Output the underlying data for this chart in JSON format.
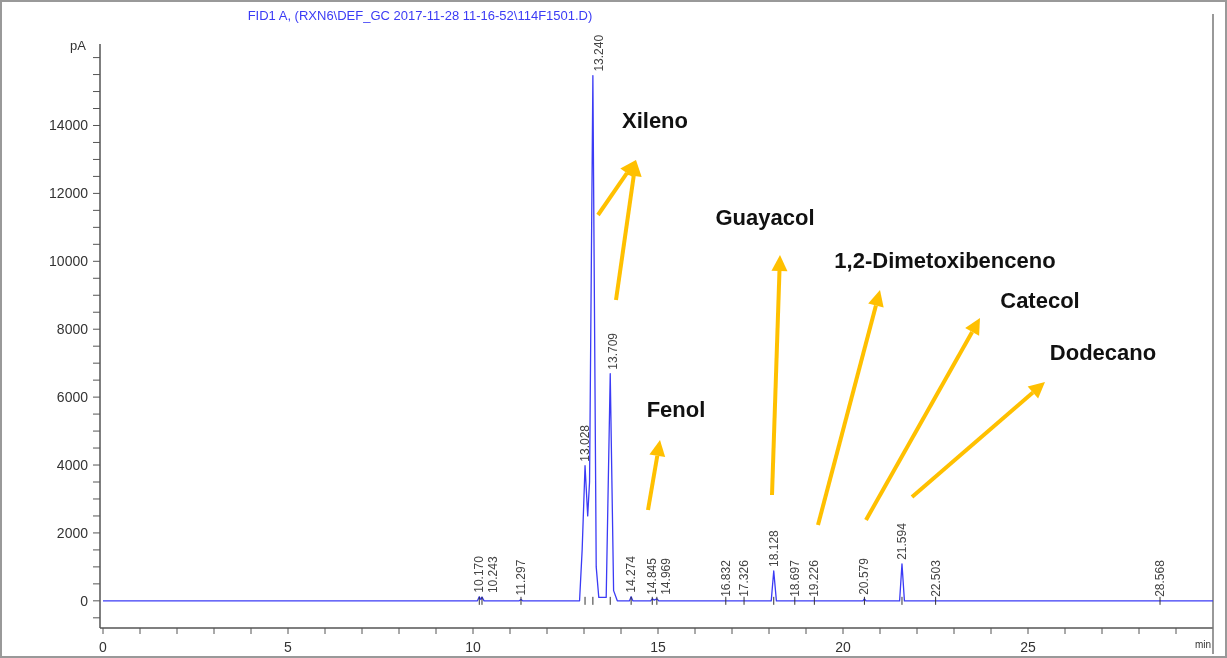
{
  "chart_data": {
    "type": "line",
    "title": "FID1 A,  (RXN6\\DEF_GC 2017-11-28 11-16-52\\114F1501.D)",
    "xlabel": "min",
    "ylabel": "pA",
    "series": [
      {
        "color": "#3b3bf5",
        "x": [
          0,
          10.12,
          10.17,
          10.21,
          10.243,
          10.3,
          11.25,
          11.297,
          11.34,
          12.88,
          12.95,
          13.028,
          13.1,
          13.15,
          13.24,
          13.33,
          13.4,
          13.6,
          13.709,
          13.8,
          13.9,
          14.23,
          14.274,
          14.32,
          14.8,
          14.845,
          14.9,
          14.969,
          15.02,
          18.06,
          18.128,
          18.2,
          20.54,
          20.579,
          20.62,
          21.53,
          21.594,
          21.66,
          30
        ],
        "values": [
          0,
          0,
          120,
          40,
          110,
          0,
          0,
          40,
          0,
          0,
          1500,
          3980,
          2500,
          3500,
          15470,
          1000,
          100,
          100,
          6690,
          300,
          0,
          0,
          120,
          0,
          0,
          60,
          20,
          60,
          0,
          0,
          880,
          0,
          0,
          60,
          0,
          0,
          1090,
          0,
          0
        ]
      }
    ],
    "xlim": [
      0,
      30
    ],
    "ylim": [
      -800,
      16400
    ],
    "xticks": [
      0,
      {
        "value": 1,
        "label": null
      },
      {
        "value": 2,
        "label": null
      },
      {
        "value": 3,
        "label": null
      },
      {
        "value": 4,
        "label": null
      },
      5,
      {
        "value": 6,
        "label": null
      },
      {
        "value": 7,
        "label": null
      },
      {
        "value": 8,
        "label": null
      },
      {
        "value": 9,
        "label": null
      },
      10,
      {
        "value": 11,
        "label": null
      },
      {
        "value": 12,
        "label": null
      },
      {
        "value": 13,
        "label": null
      },
      {
        "value": 14,
        "label": null
      },
      15,
      {
        "value": 16,
        "label": null
      },
      {
        "value": 17,
        "label": null
      },
      {
        "value": 18,
        "label": null
      },
      {
        "value": 19,
        "label": null
      },
      20,
      {
        "value": 21,
        "label": null
      },
      {
        "value": 22,
        "label": null
      },
      {
        "value": 23,
        "label": null
      },
      {
        "value": 24,
        "label": null
      },
      25,
      {
        "value": 26,
        "label": null
      },
      {
        "value": 27,
        "label": null
      },
      {
        "value": 28,
        "label": null
      },
      {
        "value": 29,
        "label": null
      }
    ],
    "yticks": [
      {
        "value": -500,
        "label": null
      },
      0,
      {
        "value": 500,
        "label": null
      },
      {
        "value": 1000,
        "label": null
      },
      {
        "value": 1500,
        "label": null
      },
      2000,
      {
        "value": 2500,
        "label": null
      },
      {
        "value": 3000,
        "label": null
      },
      {
        "value": 3500,
        "label": null
      },
      4000,
      {
        "value": 4500,
        "label": null
      },
      {
        "value": 5000,
        "label": null
      },
      {
        "value": 5500,
        "label": null
      },
      6000,
      {
        "value": 6500,
        "label": null
      },
      {
        "value": 7000,
        "label": null
      },
      {
        "value": 7500,
        "label": null
      },
      8000,
      {
        "value": 8500,
        "label": null
      },
      {
        "value": 9000,
        "label": null
      },
      {
        "value": 9500,
        "label": null
      },
      10000,
      {
        "value": 10500,
        "label": null
      },
      {
        "value": 11000,
        "label": null
      },
      {
        "value": 11500,
        "label": null
      },
      12000,
      {
        "value": 12500,
        "label": null
      },
      {
        "value": 13000,
        "label": null
      },
      {
        "value": 13500,
        "label": null
      },
      14000,
      {
        "value": 14500,
        "label": null
      },
      {
        "value": 15000,
        "label": null
      },
      {
        "value": 15500,
        "label": null
      },
      {
        "value": 16000,
        "label": null
      }
    ],
    "annotations": [
      {
        "text": "10.170",
        "x": 10.17,
        "y": 120
      },
      {
        "text": "10.243",
        "x": 10.243,
        "y": 110
      },
      {
        "text": "11.297",
        "x": 11.297,
        "y": 40
      },
      {
        "text": "13.028",
        "x": 13.028,
        "y": 3980
      },
      {
        "text": "13.240",
        "x": 13.24,
        "y": 15470
      },
      {
        "text": "13.709",
        "x": 13.709,
        "y": 6690
      },
      {
        "text": "14.274",
        "x": 14.274,
        "y": 120
      },
      {
        "text": "14.845",
        "x": 14.845,
        "y": 60
      },
      {
        "text": "14.969",
        "x": 14.969,
        "y": 60
      },
      {
        "text": "16.832",
        "x": 16.832,
        "y": 0
      },
      {
        "text": "17.326",
        "x": 17.326,
        "y": 0
      },
      {
        "text": "18.128",
        "x": 18.128,
        "y": 880
      },
      {
        "text": "18.697",
        "x": 18.697,
        "y": 0
      },
      {
        "text": "19.226",
        "x": 19.226,
        "y": 0
      },
      {
        "text": "20.579",
        "x": 20.579,
        "y": 60
      },
      {
        "text": "21.594",
        "x": 21.594,
        "y": 1090
      },
      {
        "text": "22.503",
        "x": 22.503,
        "y": 0
      },
      {
        "text": "28.568",
        "x": 28.568,
        "y": 0
      },
      "Xileno",
      "Fenol",
      "Guayacol",
      "1,2-Dimetoxibenceno",
      "Catecol",
      "Dodecano"
    ]
  }
}
